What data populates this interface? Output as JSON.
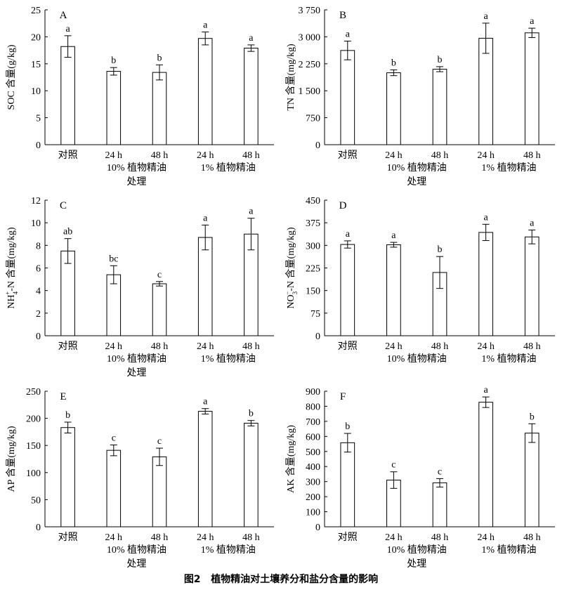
{
  "figure": {
    "caption_label": "图2",
    "caption_text": "植物精油对土壤养分和盐分含量的影响"
  },
  "chart_data": [
    {
      "type": "bar",
      "panel": "A",
      "ylabel": "SOC 含量(g/kg)",
      "ylim": [
        0,
        25
      ],
      "yticks": [
        "0",
        "5",
        "10",
        "15",
        "20",
        "25"
      ],
      "categories": [
        "对照",
        "24 h",
        "48 h",
        "24 h",
        "48 h"
      ],
      "groups": [
        "10% 植物精油",
        "1% 植物精油"
      ],
      "xlabel": "处理",
      "values": [
        18.2,
        13.6,
        13.4,
        19.7,
        17.9
      ],
      "errors": [
        2.0,
        0.7,
        1.4,
        1.2,
        0.6
      ],
      "letters": [
        "a",
        "b",
        "b",
        "a",
        "a"
      ]
    },
    {
      "type": "bar",
      "panel": "B",
      "ylabel": "TN 含量(mg/kg)",
      "ylim": [
        0,
        3750
      ],
      "yticks": [
        "0",
        "750",
        "1 500",
        "2 250",
        "3 000",
        "3 750"
      ],
      "categories": [
        "对照",
        "24 h",
        "48 h",
        "24 h",
        "48 h"
      ],
      "groups": [
        "10% 植物精油",
        "1% 植物精油"
      ],
      "xlabel": "处理",
      "values": [
        2620,
        2000,
        2100,
        2960,
        3110
      ],
      "errors": [
        260,
        80,
        70,
        420,
        130
      ],
      "letters": [
        "a",
        "b",
        "b",
        "a",
        "a"
      ]
    },
    {
      "type": "bar",
      "panel": "C",
      "ylabel": "NH4+-N 含量(mg/kg)",
      "ylim": [
        0,
        12
      ],
      "yticks": [
        "0",
        "2",
        "4",
        "6",
        "8",
        "10",
        "12"
      ],
      "categories": [
        "对照",
        "24 h",
        "48 h",
        "24 h",
        "48 h"
      ],
      "groups": [
        "10% 植物精油",
        "1% 植物精油"
      ],
      "xlabel": "处理",
      "values": [
        7.5,
        5.4,
        4.6,
        8.7,
        9.0
      ],
      "errors": [
        1.1,
        0.8,
        0.2,
        1.1,
        1.4
      ],
      "letters": [
        "ab",
        "bc",
        "c",
        "a",
        "a"
      ]
    },
    {
      "type": "bar",
      "panel": "D",
      "ylabel": "NO3−-N 含量(mg/kg)",
      "ylim": [
        0,
        450
      ],
      "yticks": [
        "0",
        "75",
        "150",
        "225",
        "300",
        "375",
        "450"
      ],
      "categories": [
        "对照",
        "24 h",
        "48 h",
        "24 h",
        "48 h"
      ],
      "groups": [
        "10% 植物精油",
        "1% 植物精油"
      ],
      "xlabel": "处理",
      "values": [
        303,
        302,
        210,
        343,
        328
      ],
      "errors": [
        12,
        8,
        53,
        27,
        23
      ],
      "letters": [
        "a",
        "a",
        "b",
        "a",
        "a"
      ]
    },
    {
      "type": "bar",
      "panel": "E",
      "ylabel": "AP 含量(mg/kg)",
      "ylim": [
        0,
        250
      ],
      "yticks": [
        "0",
        "50",
        "100",
        "150",
        "200",
        "250"
      ],
      "categories": [
        "对照",
        "24 h",
        "48 h",
        "24 h",
        "48 h"
      ],
      "groups": [
        "10% 植物精油",
        "1% 植物精油"
      ],
      "xlabel": "处理",
      "values": [
        183,
        141,
        129,
        213,
        191
      ],
      "errors": [
        10,
        10,
        16,
        5,
        5
      ],
      "letters": [
        "b",
        "c",
        "c",
        "a",
        "b"
      ]
    },
    {
      "type": "bar",
      "panel": "F",
      "ylabel": "AK 含量(mg/kg)",
      "ylim": [
        0,
        900
      ],
      "yticks": [
        "0",
        "100",
        "200",
        "300",
        "400",
        "500",
        "600",
        "700",
        "800",
        "900"
      ],
      "categories": [
        "对照",
        "24 h",
        "48 h",
        "24 h",
        "48 h"
      ],
      "groups": [
        "10% 植物精油",
        "1% 植物精油"
      ],
      "xlabel": "处理",
      "values": [
        558,
        310,
        292,
        827,
        622
      ],
      "errors": [
        62,
        55,
        28,
        35,
        62
      ],
      "letters": [
        "b",
        "c",
        "c",
        "a",
        "b"
      ]
    }
  ]
}
